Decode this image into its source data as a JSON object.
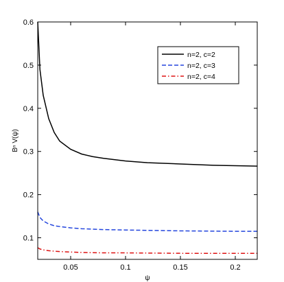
{
  "chart_data": {
    "type": "line",
    "xlabel": "ψ",
    "ylabel": "Bⁿ V(ψ)",
    "xlim": [
      0.02,
      0.22
    ],
    "ylim": [
      0.05,
      0.6
    ],
    "xticks": [
      0.05,
      0.1,
      0.15,
      0.2
    ],
    "xtick_labels": [
      "0.05",
      "0.1",
      "0.15",
      "0.2"
    ],
    "yticks": [
      0.1,
      0.2,
      0.3,
      0.4,
      0.5,
      0.6
    ],
    "ytick_labels": [
      "0.1",
      "0.2",
      "0.3",
      "0.4",
      "0.5",
      "0.6"
    ],
    "grid": false,
    "legend_position": "top-right",
    "series": [
      {
        "name": "n=2, c=2",
        "color": "#000000",
        "dash": "solid",
        "x": [
          0.02,
          0.022,
          0.025,
          0.03,
          0.035,
          0.04,
          0.05,
          0.06,
          0.07,
          0.08,
          0.1,
          0.12,
          0.15,
          0.18,
          0.2,
          0.22
        ],
        "y": [
          0.6,
          0.49,
          0.43,
          0.376,
          0.344,
          0.324,
          0.305,
          0.294,
          0.288,
          0.284,
          0.278,
          0.274,
          0.271,
          0.268,
          0.267,
          0.266
        ]
      },
      {
        "name": "n=2, c=3",
        "color": "#2244dd",
        "dash": "dashed",
        "x": [
          0.02,
          0.022,
          0.025,
          0.03,
          0.035,
          0.04,
          0.05,
          0.06,
          0.08,
          0.1,
          0.15,
          0.2,
          0.22
        ],
        "y": [
          0.16,
          0.147,
          0.139,
          0.132,
          0.128,
          0.126,
          0.123,
          0.121,
          0.119,
          0.118,
          0.116,
          0.115,
          0.115
        ]
      },
      {
        "name": "n=2, c=4",
        "color": "#dd1111",
        "dash": "dashdot",
        "x": [
          0.02,
          0.022,
          0.025,
          0.03,
          0.035,
          0.04,
          0.05,
          0.06,
          0.08,
          0.1,
          0.15,
          0.2,
          0.22
        ],
        "y": [
          0.077,
          0.074,
          0.072,
          0.07,
          0.069,
          0.068,
          0.067,
          0.066,
          0.065,
          0.065,
          0.064,
          0.064,
          0.064
        ]
      }
    ]
  }
}
